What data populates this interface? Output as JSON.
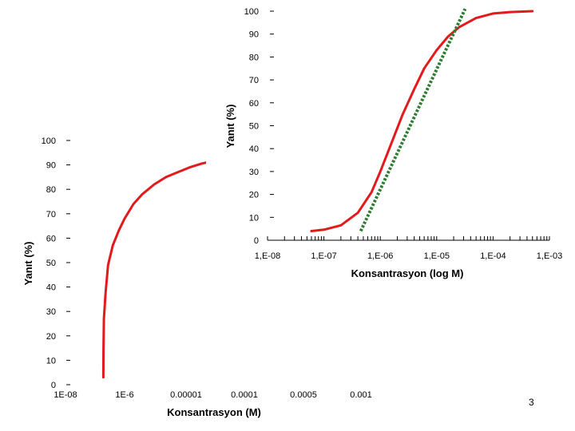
{
  "slide": {
    "page_number": "3"
  },
  "chart_data": [
    {
      "type": "line",
      "title": "",
      "xlabel": "Konsantrasyon (M)",
      "ylabel": "Yanıt (%)",
      "xscale": "categorical",
      "x_tick_labels": [
        "1E-08",
        "1E-6",
        "0.00001",
        "0.0001",
        "0.0005",
        "0.001"
      ],
      "y_tick_labels": [
        "0",
        "10",
        "20",
        "30",
        "40",
        "50",
        "60",
        "70",
        "80",
        "90",
        "100"
      ],
      "ylim": [
        0,
        100
      ],
      "grid": false,
      "legend": "none",
      "series": [
        {
          "color": "#e31a1c",
          "style": "solid",
          "x": [
            0.64,
            0.643,
            0.65,
            0.68,
            0.72,
            0.8,
            0.9,
            1.0,
            1.15,
            1.3,
            1.5,
            1.7,
            1.9,
            2.1,
            2.3,
            2.5,
            2.7,
            2.9,
            3.1,
            3.3,
            3.36
          ],
          "y": [
            3,
            15,
            27,
            38,
            49,
            57,
            63,
            68,
            74,
            78,
            82,
            85,
            87,
            89,
            90.5,
            91.7,
            92.6,
            93.3,
            93.9,
            94.4,
            94.6
          ]
        }
      ]
    },
    {
      "type": "line",
      "title": "",
      "xlabel": "Konsantrasyon (log M)",
      "ylabel": "Yanıt (%)",
      "xscale": "log",
      "x_tick_labels": [
        "1,E-08",
        "1,E-07",
        "1,E-06",
        "1,E-05",
        "1,E-04",
        "1,E-03"
      ],
      "y_tick_labels": [
        "0",
        "10",
        "20",
        "30",
        "40",
        "50",
        "60",
        "70",
        "80",
        "90",
        "100"
      ],
      "xlim": [
        1e-08,
        0.001
      ],
      "ylim": [
        0,
        100
      ],
      "grid": false,
      "legend": "none",
      "series": [
        {
          "color": "#e31a1c",
          "style": "solid",
          "x": [
            6e-08,
            1e-07,
            2e-07,
            4e-07,
            7e-07,
            1e-06,
            1.5e-06,
            2.5e-06,
            4e-06,
            6e-06,
            1e-05,
            1.6e-05,
            2.5e-05,
            5e-05,
            0.0001,
            0.0002,
            0.0005
          ],
          "y": [
            4,
            4.6,
            6.5,
            12,
            21,
            30,
            41,
            55,
            66,
            75,
            83,
            89,
            93,
            97,
            99,
            99.6,
            100
          ]
        },
        {
          "color": "#2e7d32",
          "style": "dotted",
          "x": [
            4.5e-07,
            6e-06,
            3.2e-05
          ],
          "y": [
            4,
            63,
            101
          ]
        }
      ]
    }
  ]
}
